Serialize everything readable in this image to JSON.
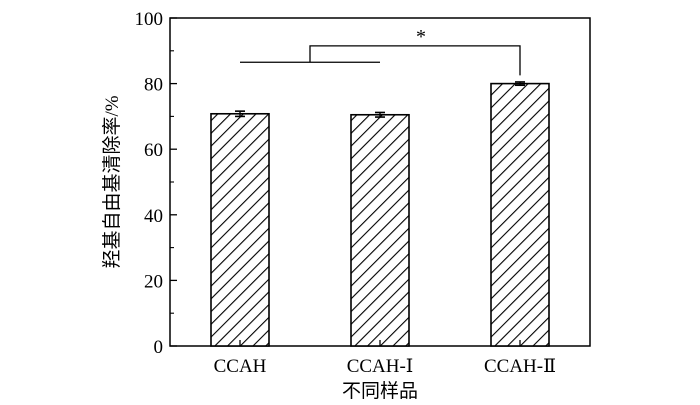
{
  "chart_data": {
    "type": "bar",
    "title": "",
    "xlabel": "不同样品",
    "ylabel": "羟基自由基清除率/%",
    "categories": [
      "CCAH",
      "CCAH-Ⅰ",
      "CCAH-Ⅱ"
    ],
    "values": [
      70.8,
      70.5,
      80.0
    ],
    "errors": [
      0.8,
      0.7,
      0.5
    ],
    "ylim": [
      0,
      100
    ],
    "yticks": [
      0,
      20,
      40,
      60,
      80,
      100
    ],
    "grid": false,
    "legend": "none",
    "bar_fill": "hatched-diagonal",
    "significance": {
      "from_categories": [
        0,
        1
      ],
      "to_category": 2,
      "label": "*"
    }
  },
  "colors": {
    "bar_stroke": "#000000",
    "hatch": "#000000",
    "background": "#ffffff"
  }
}
